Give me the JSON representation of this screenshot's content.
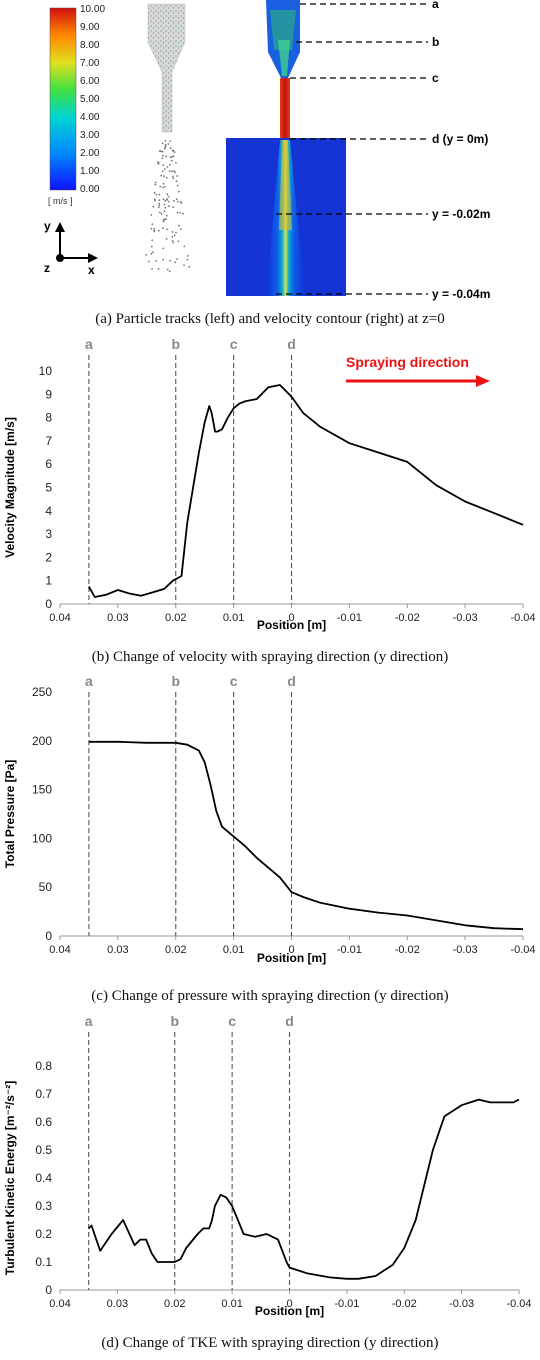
{
  "panel_a": {
    "caption": "(a) Particle tracks (left) and velocity contour (right) at z=0",
    "colorbar": {
      "ticks": [
        "10.00",
        "9.00",
        "8.00",
        "7.00",
        "6.00",
        "5.00",
        "4.00",
        "3.00",
        "2.00",
        "1.00",
        "0.00"
      ],
      "unit": "[ m/s ]"
    },
    "axes": {
      "y": "y",
      "z": "z",
      "x": "x"
    },
    "markers": [
      "a",
      "b",
      "c",
      "d (y = 0m)",
      "y = -0.02m",
      "y = -0.04m"
    ]
  },
  "spray_label": "Spraying direction",
  "colors": {
    "line": "#000000",
    "marker": "#888888",
    "arrow": "#ee1111"
  },
  "chart_data": [
    {
      "type": "line",
      "caption": "(b) Change of velocity with spraying direction (y direction)",
      "xlabel": "Position [m]",
      "ylabel": "Velocity Magnitude [m/s]",
      "xlim": [
        0.04,
        -0.04
      ],
      "ylim": [
        0,
        10
      ],
      "xticks": [
        0.04,
        0.03,
        0.02,
        0.01,
        0,
        -0.01,
        -0.02,
        -0.03,
        -0.04
      ],
      "xticklabels": [
        "0.04",
        "0.03",
        "0.02",
        "0.01",
        "0",
        "-0.01",
        "-0.02",
        "-0.03",
        "-0.04"
      ],
      "yticks": [
        0,
        1,
        2,
        3,
        4,
        5,
        6,
        7,
        8,
        9,
        10
      ],
      "yticklabels": [
        "0",
        "1",
        "2",
        "3",
        "4",
        "5",
        "6",
        "7",
        "8",
        "9",
        "10"
      ],
      "markers": [
        {
          "label": "a",
          "x": 0.035
        },
        {
          "label": "b",
          "x": 0.02
        },
        {
          "label": "c",
          "x": 0.01
        },
        {
          "label": "d",
          "x": 0
        }
      ],
      "x": [
        0.035,
        0.034,
        0.032,
        0.03,
        0.028,
        0.026,
        0.024,
        0.022,
        0.0205,
        0.019,
        0.018,
        0.016,
        0.015,
        0.0142,
        0.0138,
        0.0132,
        0.0128,
        0.012,
        0.011,
        0.01,
        0.009,
        0.008,
        0.006,
        0.004,
        0.002,
        0.0,
        -0.002,
        -0.005,
        -0.01,
        -0.015,
        -0.02,
        -0.025,
        -0.03,
        -0.035,
        -0.04
      ],
      "y": [
        0.75,
        0.3,
        0.4,
        0.6,
        0.45,
        0.35,
        0.5,
        0.65,
        1.0,
        1.2,
        3.5,
        6.5,
        7.8,
        8.5,
        8.2,
        7.4,
        7.4,
        7.5,
        8.0,
        8.4,
        8.6,
        8.7,
        8.8,
        9.3,
        9.4,
        8.9,
        8.2,
        7.6,
        6.9,
        6.5,
        6.1,
        5.1,
        4.4,
        3.9,
        3.4
      ]
    },
    {
      "type": "line",
      "caption": "(c) Change of pressure with spraying direction (y direction)",
      "xlabel": "Position [m]",
      "ylabel": "Total Pressure [Pa]",
      "xlim": [
        0.04,
        -0.04
      ],
      "ylim": [
        0,
        250
      ],
      "xticks": [
        0.04,
        0.03,
        0.02,
        0.01,
        0,
        -0.01,
        -0.02,
        -0.03,
        -0.04
      ],
      "xticklabels": [
        "0.04",
        "0.03",
        "0.02",
        "0.01",
        "0",
        "-0.01",
        "-0.02",
        "-0.03",
        "-0.04"
      ],
      "yticks": [
        0,
        50,
        100,
        150,
        200,
        250
      ],
      "yticklabels": [
        "0",
        "50",
        "100",
        "150",
        "200",
        "250"
      ],
      "markers": [
        {
          "label": "a",
          "x": 0.035
        },
        {
          "label": "b",
          "x": 0.02
        },
        {
          "label": "c",
          "x": 0.01
        },
        {
          "label": "d",
          "x": 0
        }
      ],
      "x": [
        0.035,
        0.03,
        0.025,
        0.02,
        0.018,
        0.016,
        0.015,
        0.014,
        0.013,
        0.012,
        0.01,
        0.008,
        0.006,
        0.004,
        0.002,
        0.0,
        -0.002,
        -0.005,
        -0.01,
        -0.015,
        -0.02,
        -0.025,
        -0.03,
        -0.035,
        -0.04
      ],
      "y": [
        199,
        199,
        198,
        198,
        196,
        190,
        178,
        155,
        128,
        112,
        102,
        92,
        80,
        70,
        60,
        45,
        40,
        34,
        28,
        24,
        21,
        16,
        11,
        8,
        7
      ]
    },
    {
      "type": "line",
      "caption": "(d) Change of TKE with spraying direction (y direction)",
      "xlabel": "Position [m]",
      "ylabel": "Turbulent Kinetic Energy [m⁻²/s⁻²]",
      "xlim": [
        0.04,
        -0.04
      ],
      "ylim": [
        0,
        0.8
      ],
      "xticks": [
        0.04,
        0.03,
        0.02,
        0.01,
        0,
        -0.01,
        -0.02,
        -0.03,
        -0.04
      ],
      "xticklabels": [
        "0.04",
        "0.03",
        "0.02",
        "0.01",
        "0",
        "-0.01",
        "-0.02",
        "-0.03",
        "-0.04"
      ],
      "yticks": [
        0,
        0.1,
        0.2,
        0.3,
        0.4,
        0.5,
        0.6,
        0.7,
        0.8
      ],
      "yticklabels": [
        "0",
        "0.1",
        "0.2",
        "0.3",
        "0.4",
        "0.5",
        "0.6",
        "0.7",
        "0.8"
      ],
      "markers": [
        {
          "label": "a",
          "x": 0.035
        },
        {
          "label": "b",
          "x": 0.02
        },
        {
          "label": "c",
          "x": 0.01
        },
        {
          "label": "d",
          "x": 0
        }
      ],
      "x": [
        0.035,
        0.0345,
        0.034,
        0.033,
        0.031,
        0.029,
        0.027,
        0.026,
        0.025,
        0.024,
        0.023,
        0.022,
        0.021,
        0.02,
        0.019,
        0.018,
        0.016,
        0.015,
        0.014,
        0.0135,
        0.013,
        0.012,
        0.011,
        0.01,
        0.009,
        0.008,
        0.006,
        0.004,
        0.002,
        0.0005,
        0.0,
        -0.003,
        -0.007,
        -0.01,
        -0.012,
        -0.015,
        -0.018,
        -0.02,
        -0.022,
        -0.025,
        -0.027,
        -0.03,
        -0.033,
        -0.035,
        -0.037,
        -0.039,
        -0.04
      ],
      "y": [
        0.22,
        0.23,
        0.2,
        0.14,
        0.2,
        0.25,
        0.16,
        0.18,
        0.18,
        0.13,
        0.1,
        0.1,
        0.1,
        0.1,
        0.11,
        0.15,
        0.2,
        0.22,
        0.22,
        0.25,
        0.3,
        0.34,
        0.33,
        0.3,
        0.25,
        0.2,
        0.19,
        0.2,
        0.18,
        0.1,
        0.08,
        0.06,
        0.045,
        0.04,
        0.04,
        0.05,
        0.09,
        0.15,
        0.25,
        0.5,
        0.62,
        0.66,
        0.68,
        0.67,
        0.67,
        0.67,
        0.68
      ]
    }
  ]
}
